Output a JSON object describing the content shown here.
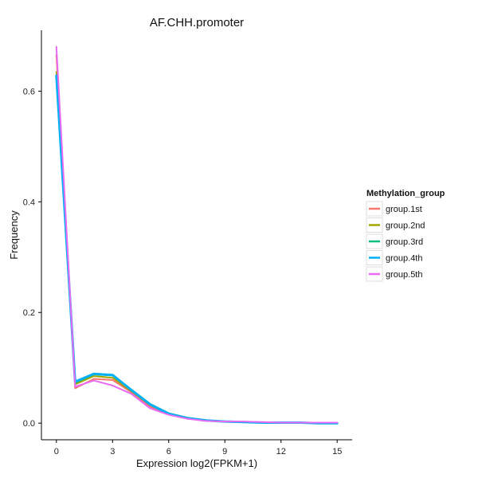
{
  "chart_data": {
    "type": "line",
    "title": "AF.CHH.promoter",
    "xlabel": "Expression log2(FPKM+1)",
    "ylabel": "Frequency",
    "xlim": [
      -0.8,
      15.8
    ],
    "ylim": [
      -0.03,
      0.71
    ],
    "xticks": [
      0,
      3,
      6,
      9,
      12,
      15
    ],
    "xtick_labels": [
      "0",
      "3",
      "6",
      "9",
      "12",
      "15"
    ],
    "yticks": [
      0.0,
      0.2,
      0.4,
      0.6
    ],
    "ytick_labels": [
      "0.0",
      "0.2",
      "0.4",
      "0.6"
    ],
    "grid": false,
    "legend_title": "Methylation_group",
    "legend_position": "right",
    "x": [
      0,
      1,
      2,
      3,
      4,
      5,
      6,
      7,
      8,
      9,
      10,
      11,
      12,
      13,
      14,
      15
    ],
    "series": [
      {
        "name": "group.1st",
        "color": "#F8766D",
        "values": [
          0.665,
          0.063,
          0.08,
          0.078,
          0.056,
          0.03,
          0.016,
          0.009,
          0.005,
          0.003,
          0.002,
          0.001,
          0.001,
          0.001,
          0.0,
          0.0
        ]
      },
      {
        "name": "group.2nd",
        "color": "#A3A500",
        "values": [
          0.635,
          0.07,
          0.085,
          0.082,
          0.058,
          0.033,
          0.017,
          0.009,
          0.005,
          0.003,
          0.002,
          0.001,
          0.001,
          0.001,
          0.0,
          0.0
        ]
      },
      {
        "name": "group.3rd",
        "color": "#00BF7D",
        "values": [
          0.627,
          0.073,
          0.088,
          0.086,
          0.061,
          0.035,
          0.018,
          0.01,
          0.005,
          0.003,
          0.002,
          0.001,
          0.001,
          0.001,
          0.0,
          0.0
        ]
      },
      {
        "name": "group.4th",
        "color": "#00B0F6",
        "values": [
          0.628,
          0.075,
          0.089,
          0.087,
          0.06,
          0.034,
          0.017,
          0.009,
          0.005,
          0.003,
          0.002,
          0.001,
          0.001,
          0.001,
          0.0,
          0.0
        ]
      },
      {
        "name": "group.5th",
        "color": "#E76BF3",
        "values": [
          0.68,
          0.066,
          0.077,
          0.068,
          0.053,
          0.027,
          0.015,
          0.008,
          0.004,
          0.003,
          0.003,
          0.002,
          0.001,
          0.001,
          0.001,
          0.001
        ]
      }
    ]
  }
}
